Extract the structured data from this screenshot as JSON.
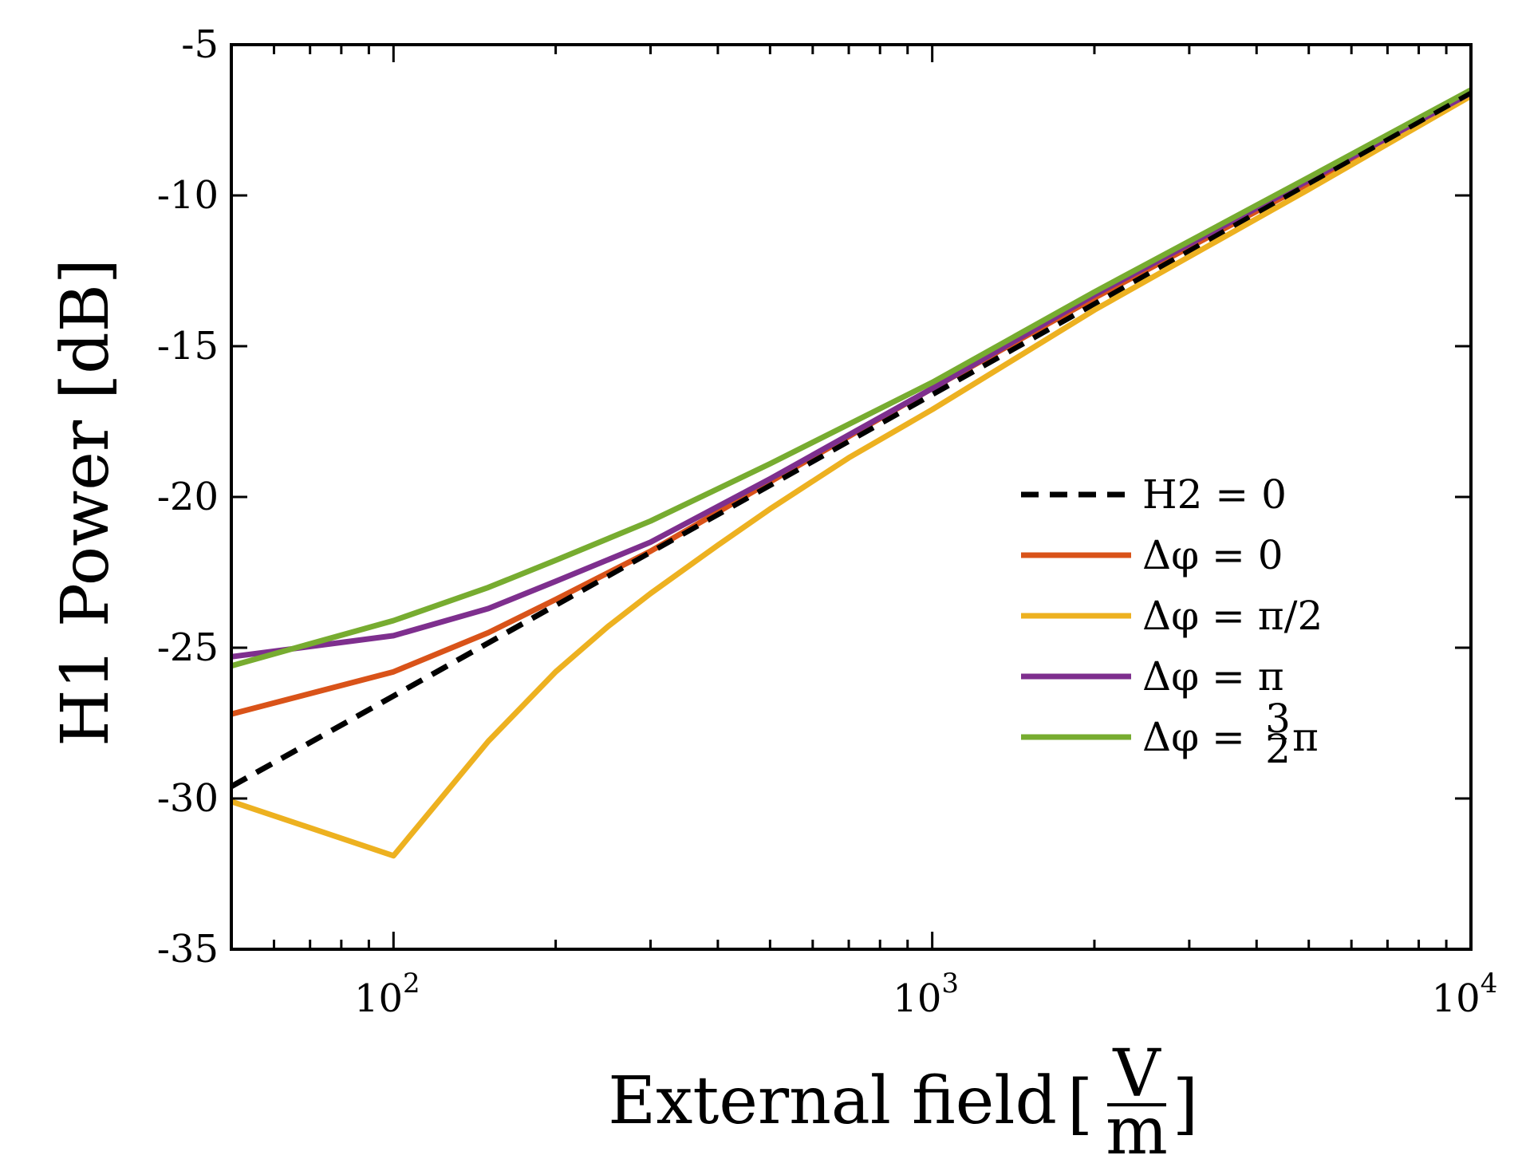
{
  "chart_data": {
    "type": "line",
    "title": "",
    "xlabel": "External field",
    "xlabel_unit": {
      "numerator": "V",
      "denominator": "m"
    },
    "ylabel": "H1 Power [dB]",
    "xscale": "log",
    "xlim": [
      50,
      10000
    ],
    "ylim": [
      -35,
      -5
    ],
    "yticks": [
      -35,
      -30,
      -25,
      -20,
      -15,
      -10,
      -5
    ],
    "ytick_labels": [
      "-35",
      "-30",
      "-25",
      "-20",
      "-15",
      "-10",
      "-5"
    ],
    "xticks": [
      100,
      1000,
      10000
    ],
    "xtick_labels": [
      {
        "base": "10",
        "exp": "2"
      },
      {
        "base": "10",
        "exp": "3"
      },
      {
        "base": "10",
        "exp": "4"
      }
    ],
    "legend_position": "right",
    "series": [
      {
        "name": "H2 = 0",
        "label_parts": {
          "main": "H2 = 0"
        },
        "color": "#000000",
        "dashed": true,
        "x": [
          50,
          100,
          1000,
          10000
        ],
        "y": [
          -29.6,
          -26.6,
          -16.6,
          -6.6
        ]
      },
      {
        "name": "Δφ = 0",
        "label_parts": {
          "main": "Δφ = 0"
        },
        "color": "#D95319",
        "dashed": false,
        "x": [
          50,
          100,
          150,
          200,
          300,
          500,
          1000,
          2000,
          5000,
          10000
        ],
        "y": [
          -27.2,
          -25.8,
          -24.5,
          -23.4,
          -21.8,
          -19.5,
          -16.4,
          -13.4,
          -9.6,
          -6.6
        ]
      },
      {
        "name": "Δφ = π/2",
        "label_parts": {
          "main": "Δφ = π/2"
        },
        "color": "#EDB120",
        "dashed": false,
        "x": [
          50,
          100,
          150,
          200,
          250,
          300,
          400,
          500,
          700,
          1000,
          2000,
          5000,
          10000
        ],
        "y": [
          -30.1,
          -31.9,
          -28.1,
          -25.8,
          -24.3,
          -23.2,
          -21.6,
          -20.4,
          -18.7,
          -17.1,
          -13.8,
          -9.8,
          -6.7
        ]
      },
      {
        "name": "Δφ = π",
        "label_parts": {
          "main": "Δφ = π"
        },
        "color": "#7E2F8E",
        "dashed": false,
        "x": [
          50,
          100,
          150,
          200,
          300,
          500,
          1000,
          2000,
          5000,
          10000
        ],
        "y": [
          -25.3,
          -24.6,
          -23.7,
          -22.8,
          -21.5,
          -19.4,
          -16.4,
          -13.3,
          -9.5,
          -6.6
        ]
      },
      {
        "name": "Δφ = 3/2 π",
        "label_parts": {
          "main": "Δφ = ",
          "frac_num": "3",
          "frac_den": "2",
          "tail": "π"
        },
        "color": "#77AC30",
        "dashed": false,
        "x": [
          50,
          100,
          150,
          200,
          300,
          500,
          1000,
          2000,
          5000,
          10000
        ],
        "y": [
          -25.6,
          -24.1,
          -23.0,
          -22.1,
          -20.8,
          -18.9,
          -16.2,
          -13.2,
          -9.4,
          -6.5
        ]
      }
    ]
  }
}
